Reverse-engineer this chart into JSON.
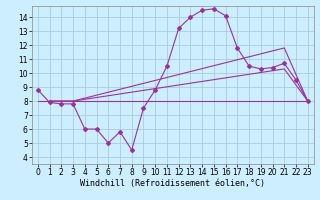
{
  "xlabel": "Windchill (Refroidissement éolien,°C)",
  "background_color": "#cceeff",
  "grid_color": "#aaccdd",
  "line_color": "#993399",
  "xlim": [
    -0.5,
    23.5
  ],
  "ylim": [
    3.5,
    14.8
  ],
  "yticks": [
    4,
    5,
    6,
    7,
    8,
    9,
    10,
    11,
    12,
    13,
    14
  ],
  "xticks": [
    0,
    1,
    2,
    3,
    4,
    5,
    6,
    7,
    8,
    9,
    10,
    11,
    12,
    13,
    14,
    15,
    16,
    17,
    18,
    19,
    20,
    21,
    22,
    23
  ],
  "series1_x": [
    0,
    1,
    2,
    3,
    4,
    5,
    6,
    7,
    8,
    9,
    10,
    11,
    12,
    13,
    14,
    15,
    16,
    17,
    18,
    19,
    20,
    21,
    22,
    23
  ],
  "series1_y": [
    8.8,
    7.9,
    7.8,
    7.8,
    6.0,
    6.0,
    5.0,
    5.8,
    4.5,
    7.5,
    8.8,
    10.5,
    13.2,
    14.0,
    14.5,
    14.6,
    14.1,
    11.8,
    10.5,
    10.3,
    10.4,
    10.7,
    9.5,
    8.0
  ],
  "series2_x": [
    0,
    23
  ],
  "series2_y": [
    8.0,
    8.0
  ],
  "series3_x": [
    1,
    3,
    21,
    23
  ],
  "series3_y": [
    8.0,
    8.0,
    11.8,
    8.0
  ],
  "series4_x": [
    1,
    3,
    21,
    23
  ],
  "series4_y": [
    8.0,
    8.0,
    10.3,
    8.0
  ],
  "xlabel_fontsize": 6,
  "tick_fontsize": 5.5
}
